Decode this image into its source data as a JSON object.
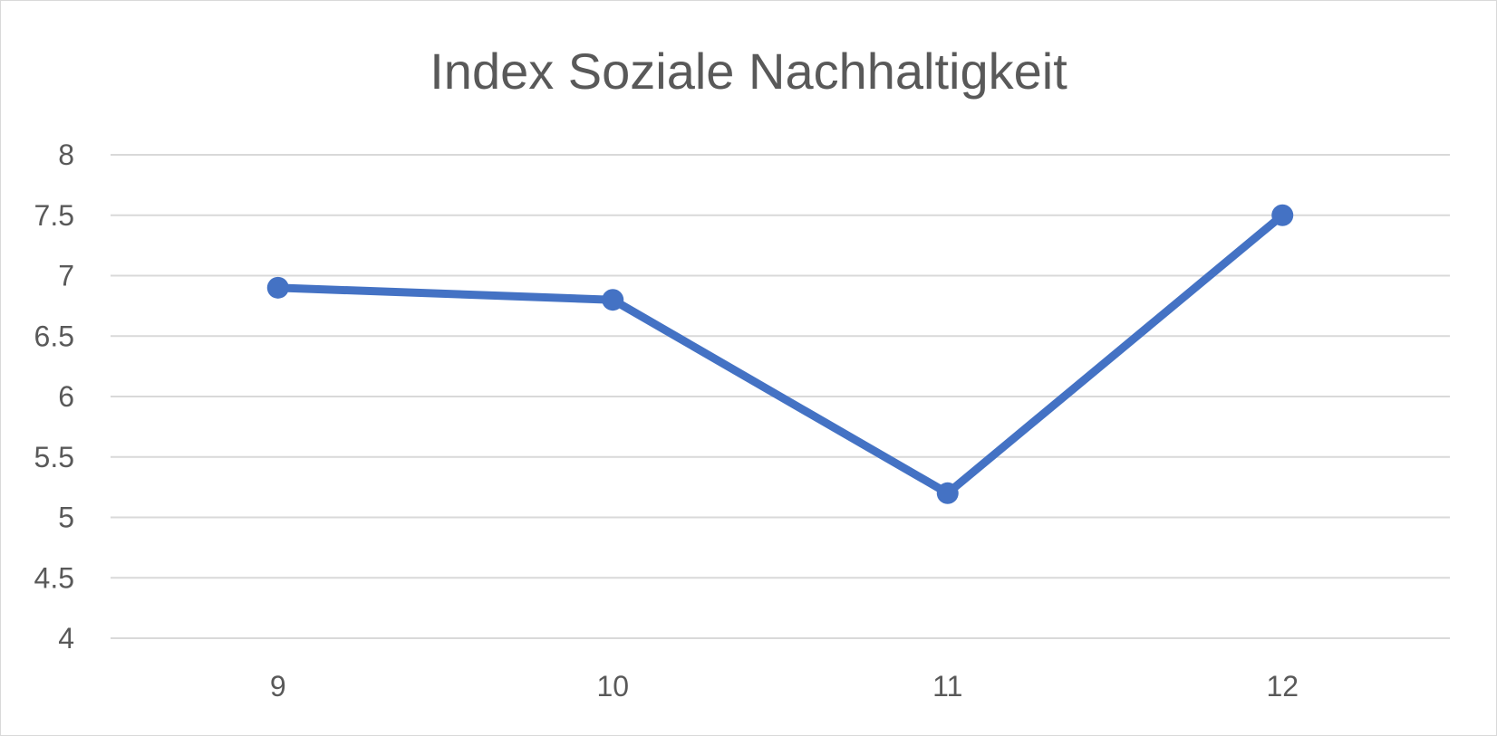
{
  "chart_data": {
    "type": "line",
    "title": "Index Soziale Nachhaltigkeit",
    "xlabel": "",
    "ylabel": "",
    "x": [
      "9",
      "10",
      "11",
      "12"
    ],
    "series": [
      {
        "values": [
          6.9,
          6.8,
          5.2,
          7.5
        ]
      }
    ],
    "ylim": [
      4,
      8
    ],
    "yticks": [
      4,
      4.5,
      5,
      5.5,
      6,
      6.5,
      7,
      7.5,
      8
    ],
    "ytick_labels": [
      "4",
      "4.5",
      "5",
      "5.5",
      "6",
      "6.5",
      "7",
      "7.5",
      "8"
    ],
    "grid": true,
    "legend": "none",
    "line_color": "#4472c4",
    "grid_color": "#d9d9d9",
    "text_color": "#595959"
  }
}
